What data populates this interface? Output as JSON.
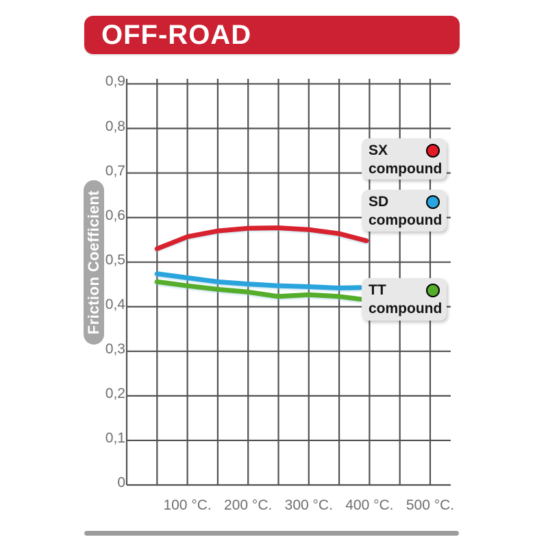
{
  "banner": {
    "label": "OFF-ROAD",
    "bg": "#cc2132",
    "text_color": "#ffffff"
  },
  "y_axis_title": "Friction Coefficient",
  "colors": {
    "grid": "#515151",
    "tick_text": "#6e6e6e",
    "y_title_box_bg": "#a7a7a7",
    "legend_box_bg": "#e8e8e8",
    "bottom_bar": "#9c9c9c",
    "sx_red": "#d8232f",
    "sd_blue": "#2aa4dc",
    "tt_green": "#55ad2b"
  },
  "legend": [
    {
      "line1": "SX",
      "line2": "compound",
      "dot_color": "#e31b26"
    },
    {
      "line1": "SD",
      "line2": "compound",
      "dot_color": "#29a6e0"
    },
    {
      "line1": "TT",
      "line2": "compound",
      "dot_color": "#55ad2b"
    }
  ],
  "chart_data": {
    "type": "line",
    "title": "OFF-ROAD",
    "xlabel": "",
    "ylabel": "Friction Coefficient",
    "ylim": [
      0,
      0.9
    ],
    "xlim_celsius": [
      0,
      534
    ],
    "grid": {
      "on": true,
      "x_step_celsius": 50,
      "y_step": 0.1
    },
    "legend_position": "right-overlay",
    "y_ticks": [
      {
        "label": "0,9",
        "value": 0.9
      },
      {
        "label": "0,8",
        "value": 0.8
      },
      {
        "label": "0,7",
        "value": 0.7
      },
      {
        "label": "0,6",
        "value": 0.6
      },
      {
        "label": "0,5",
        "value": 0.5
      },
      {
        "label": "0,4",
        "value": 0.4
      },
      {
        "label": "0,3",
        "value": 0.3
      },
      {
        "label": "0,2",
        "value": 0.2
      },
      {
        "label": "0,1",
        "value": 0.1
      },
      {
        "label": "0",
        "value": 0
      }
    ],
    "x_ticks": [
      {
        "label": "100 °C.",
        "value": 100
      },
      {
        "label": "200 °C.",
        "value": 200
      },
      {
        "label": "300 °C.",
        "value": 300
      },
      {
        "label": "400 °C.",
        "value": 400
      },
      {
        "label": "500 °C.",
        "value": 500
      }
    ],
    "series": [
      {
        "name": "SX compound",
        "color": "#d8232f",
        "x": [
          50,
          100,
          150,
          200,
          250,
          300,
          350,
          395
        ],
        "values": [
          0.53,
          0.557,
          0.57,
          0.576,
          0.577,
          0.573,
          0.564,
          0.548
        ]
      },
      {
        "name": "SD compound",
        "color": "#2aa4dc",
        "x": [
          50,
          100,
          150,
          200,
          250,
          300,
          350,
          385
        ],
        "values": [
          0.474,
          0.465,
          0.456,
          0.451,
          0.447,
          0.445,
          0.442,
          0.443
        ]
      },
      {
        "name": "TT compound",
        "color": "#55ad2b",
        "x": [
          50,
          100,
          150,
          200,
          250,
          300,
          350,
          385
        ],
        "values": [
          0.456,
          0.447,
          0.439,
          0.433,
          0.423,
          0.427,
          0.423,
          0.417
        ]
      }
    ]
  }
}
